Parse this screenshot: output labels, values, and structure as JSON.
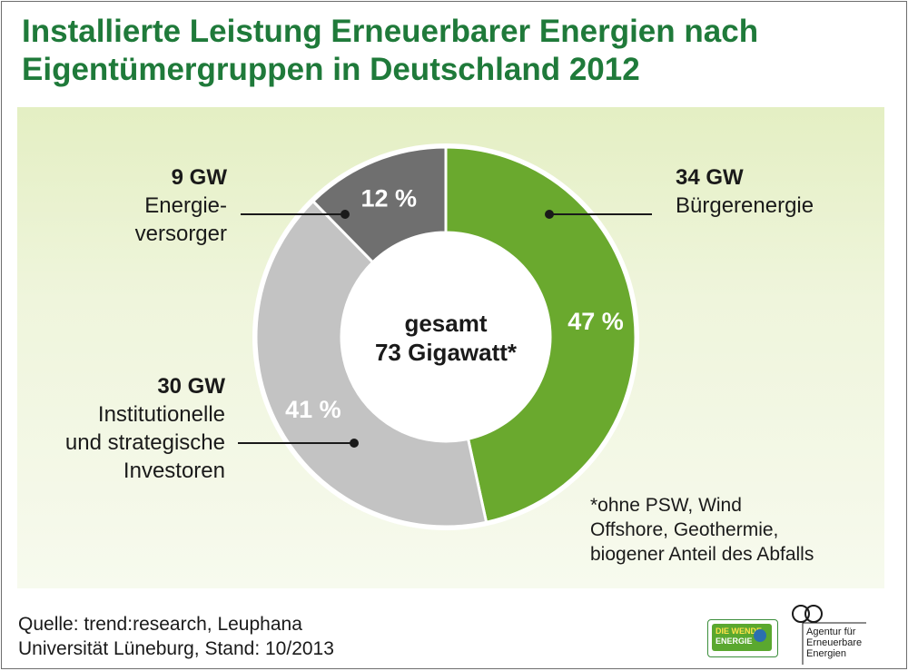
{
  "title": {
    "line1": "Installierte Leistung Erneuerbarer Energien nach",
    "line2": "Eigentümergruppen in Deutschland 2012"
  },
  "center_label": {
    "line1": "gesamt",
    "line2": "73 Gigawatt*"
  },
  "colors": {
    "title": "#1f7a3a",
    "buerger": "#6aa92e",
    "institutionell": "#c3c3c3",
    "versorger": "#6f6f6f"
  },
  "chart_data": {
    "type": "pie",
    "title": "Installierte Leistung Erneuerbarer Energien nach Eigentümergruppen in Deutschland 2012",
    "total_label": "73 Gigawatt*",
    "slices": [
      {
        "name_lines": [
          "Bürgerenergie"
        ],
        "gw_label": "34 GW",
        "value": 34,
        "percent_label": "47 %",
        "color": "#6aa92e"
      },
      {
        "name_lines": [
          "Institutionelle",
          "und strategische",
          "Investoren"
        ],
        "gw_label": "30 GW",
        "value": 30,
        "percent_label": "41 %",
        "color": "#c3c3c3"
      },
      {
        "name_lines": [
          "Energie-",
          "versorger"
        ],
        "gw_label": "9 GW",
        "value": 9,
        "percent_label": "12 %",
        "color": "#6f6f6f"
      }
    ]
  },
  "footnote": {
    "line1": "*ohne PSW, Wind",
    "line2": "Offshore, Geothermie,",
    "line3": "biogener Anteil des Abfalls"
  },
  "source": {
    "line1": "Quelle: trend:research, Leuphana",
    "line2": "Universität Lüneburg, Stand: 10/2013"
  },
  "logos": {
    "wende_line1": "DIE WENDE",
    "wende_line2": "ENERGIE",
    "aee_line1": "Agentur für",
    "aee_line2": "Erneuerbare",
    "aee_line3": "Energien"
  }
}
